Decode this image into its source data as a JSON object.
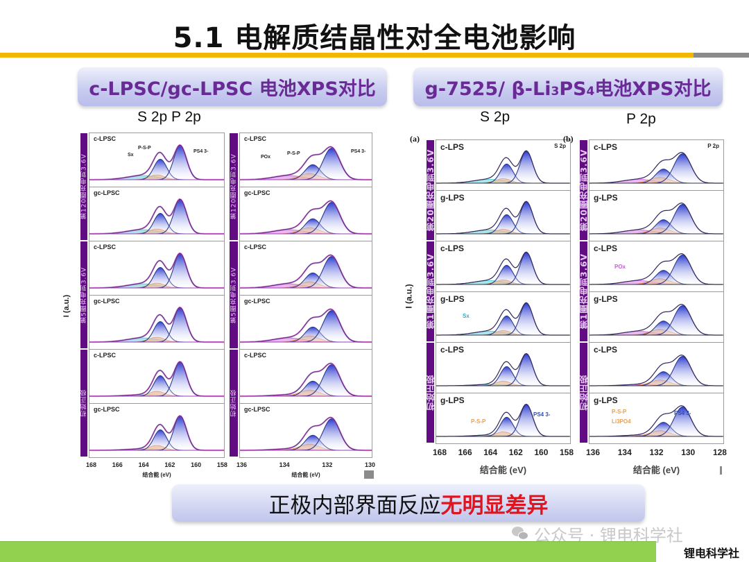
{
  "title": "5.1 电解质结晶性对全电池影响",
  "colors": {
    "title_rule": "#f2b705",
    "header_text": "#6a2a96",
    "strip": "#620c83",
    "highlight": "#e0141e",
    "footer_bar": "#92d050",
    "fit_blue": "#3a4cd8",
    "fit_orange": "#f0a060",
    "fit_cyan": "#40c8d0",
    "fit_violet": "#d060e0"
  },
  "left_section": {
    "header": "c-LPSC/gc-LPSC 电池XPS对比",
    "sub_label": "S 2p P 2p",
    "y_axis_title": "I (a.u.)",
    "columns": [
      {
        "name": "S 2p",
        "x_ticks": [
          "168",
          "166",
          "164",
          "162",
          "160",
          "158"
        ],
        "x_title": "结合能  (eV)",
        "groups": [
          {
            "strip": "第120圈充电到3.6V",
            "panels": [
              {
                "label": "c-LPSC",
                "annotations": [
                  "Sx",
                  "P-S-P",
                  "PS4 3-"
                ]
              },
              {
                "label": "gc-LPSC",
                "annotations": []
              }
            ]
          },
          {
            "strip": "第5圈充电到3.6V",
            "panels": [
              {
                "label": "c-LPSC",
                "annotations": []
              },
              {
                "label": "gc-LPSC",
                "annotations": []
              }
            ]
          },
          {
            "strip": "初始正极",
            "panels": [
              {
                "label": "c-LPSC",
                "annotations": []
              },
              {
                "label": "gc-LPSC",
                "annotations": []
              }
            ]
          }
        ]
      },
      {
        "name": "P 2p",
        "x_ticks": [
          "136",
          "134",
          "132",
          "130"
        ],
        "x_title": "结合能  (eV)",
        "groups": [
          {
            "strip": "第120圈充电到3.6V",
            "panels": [
              {
                "label": "c-LPSC",
                "annotations": [
                  "POx",
                  "P-S-P",
                  "PS4 3-"
                ]
              },
              {
                "label": "gc-LPSC",
                "annotations": []
              }
            ]
          },
          {
            "strip": "第5圈充电到3.6V",
            "panels": [
              {
                "label": "c-LPSC",
                "annotations": []
              },
              {
                "label": "gc-LPSC",
                "annotations": []
              }
            ]
          },
          {
            "strip": "初始正极",
            "panels": [
              {
                "label": "c-LPSC",
                "annotations": []
              },
              {
                "label": "gc-LPSC",
                "annotations": []
              }
            ]
          }
        ]
      }
    ]
  },
  "right_section": {
    "header_prefix": "g-7525/ β-Li",
    "header_sub1": "3",
    "header_mid": "PS",
    "header_sub2": "4",
    "header_suffix": "电池XPS对比",
    "sub_label_s": "S 2p",
    "sub_label_p": "P 2p",
    "y_axis_title": "I (a.u.)",
    "columns": [
      {
        "letter": "(a)",
        "corner": "S 2p",
        "x_ticks": [
          "168",
          "166",
          "164",
          "162",
          "160",
          "158"
        ],
        "x_title": "结合能 (eV)",
        "groups": [
          {
            "strip": "第20圈充电到3.6V",
            "panels": [
              {
                "label": "c-LPS",
                "annotations": []
              },
              {
                "label": "g-LPS",
                "annotations": []
              }
            ]
          },
          {
            "strip": "第1圈充电到3.6V",
            "panels": [
              {
                "label": "c-LPS",
                "annotations": []
              },
              {
                "label": "g-LPS",
                "annotations": [
                  "Sx"
                ]
              }
            ]
          },
          {
            "strip": "初始正极",
            "panels": [
              {
                "label": "c-LPS",
                "annotations": []
              },
              {
                "label": "g-LPS",
                "annotations": [
                  "P-S-P",
                  "PS4 3-"
                ]
              }
            ]
          }
        ]
      },
      {
        "letter": "(b)",
        "corner": "P 2p",
        "x_ticks": [
          "136",
          "134",
          "132",
          "130",
          "128"
        ],
        "x_title": "结合能 (eV)",
        "groups": [
          {
            "strip": "第20圈充电到3.6V",
            "panels": [
              {
                "label": "c-LPS",
                "annotations": []
              },
              {
                "label": "g-LPS",
                "annotations": []
              }
            ]
          },
          {
            "strip": "第1圈充电到3.6V",
            "panels": [
              {
                "label": "c-LPS",
                "annotations": [
                  "POx"
                ]
              },
              {
                "label": "g-LPS",
                "annotations": []
              }
            ]
          },
          {
            "strip": "初始正极",
            "panels": [
              {
                "label": "c-LPS",
                "annotations": []
              },
              {
                "label": "g-LPS",
                "annotations": [
                  "P-S-P",
                  "Li3PO4",
                  "PS4 3-"
                ]
              }
            ]
          }
        ]
      }
    ]
  },
  "conclusion": {
    "normal": "正极内部界面反应",
    "highlight": "无明显差异"
  },
  "watermark": "公众号 · 锂电科学社",
  "footer_brand": "锂电科学社"
}
